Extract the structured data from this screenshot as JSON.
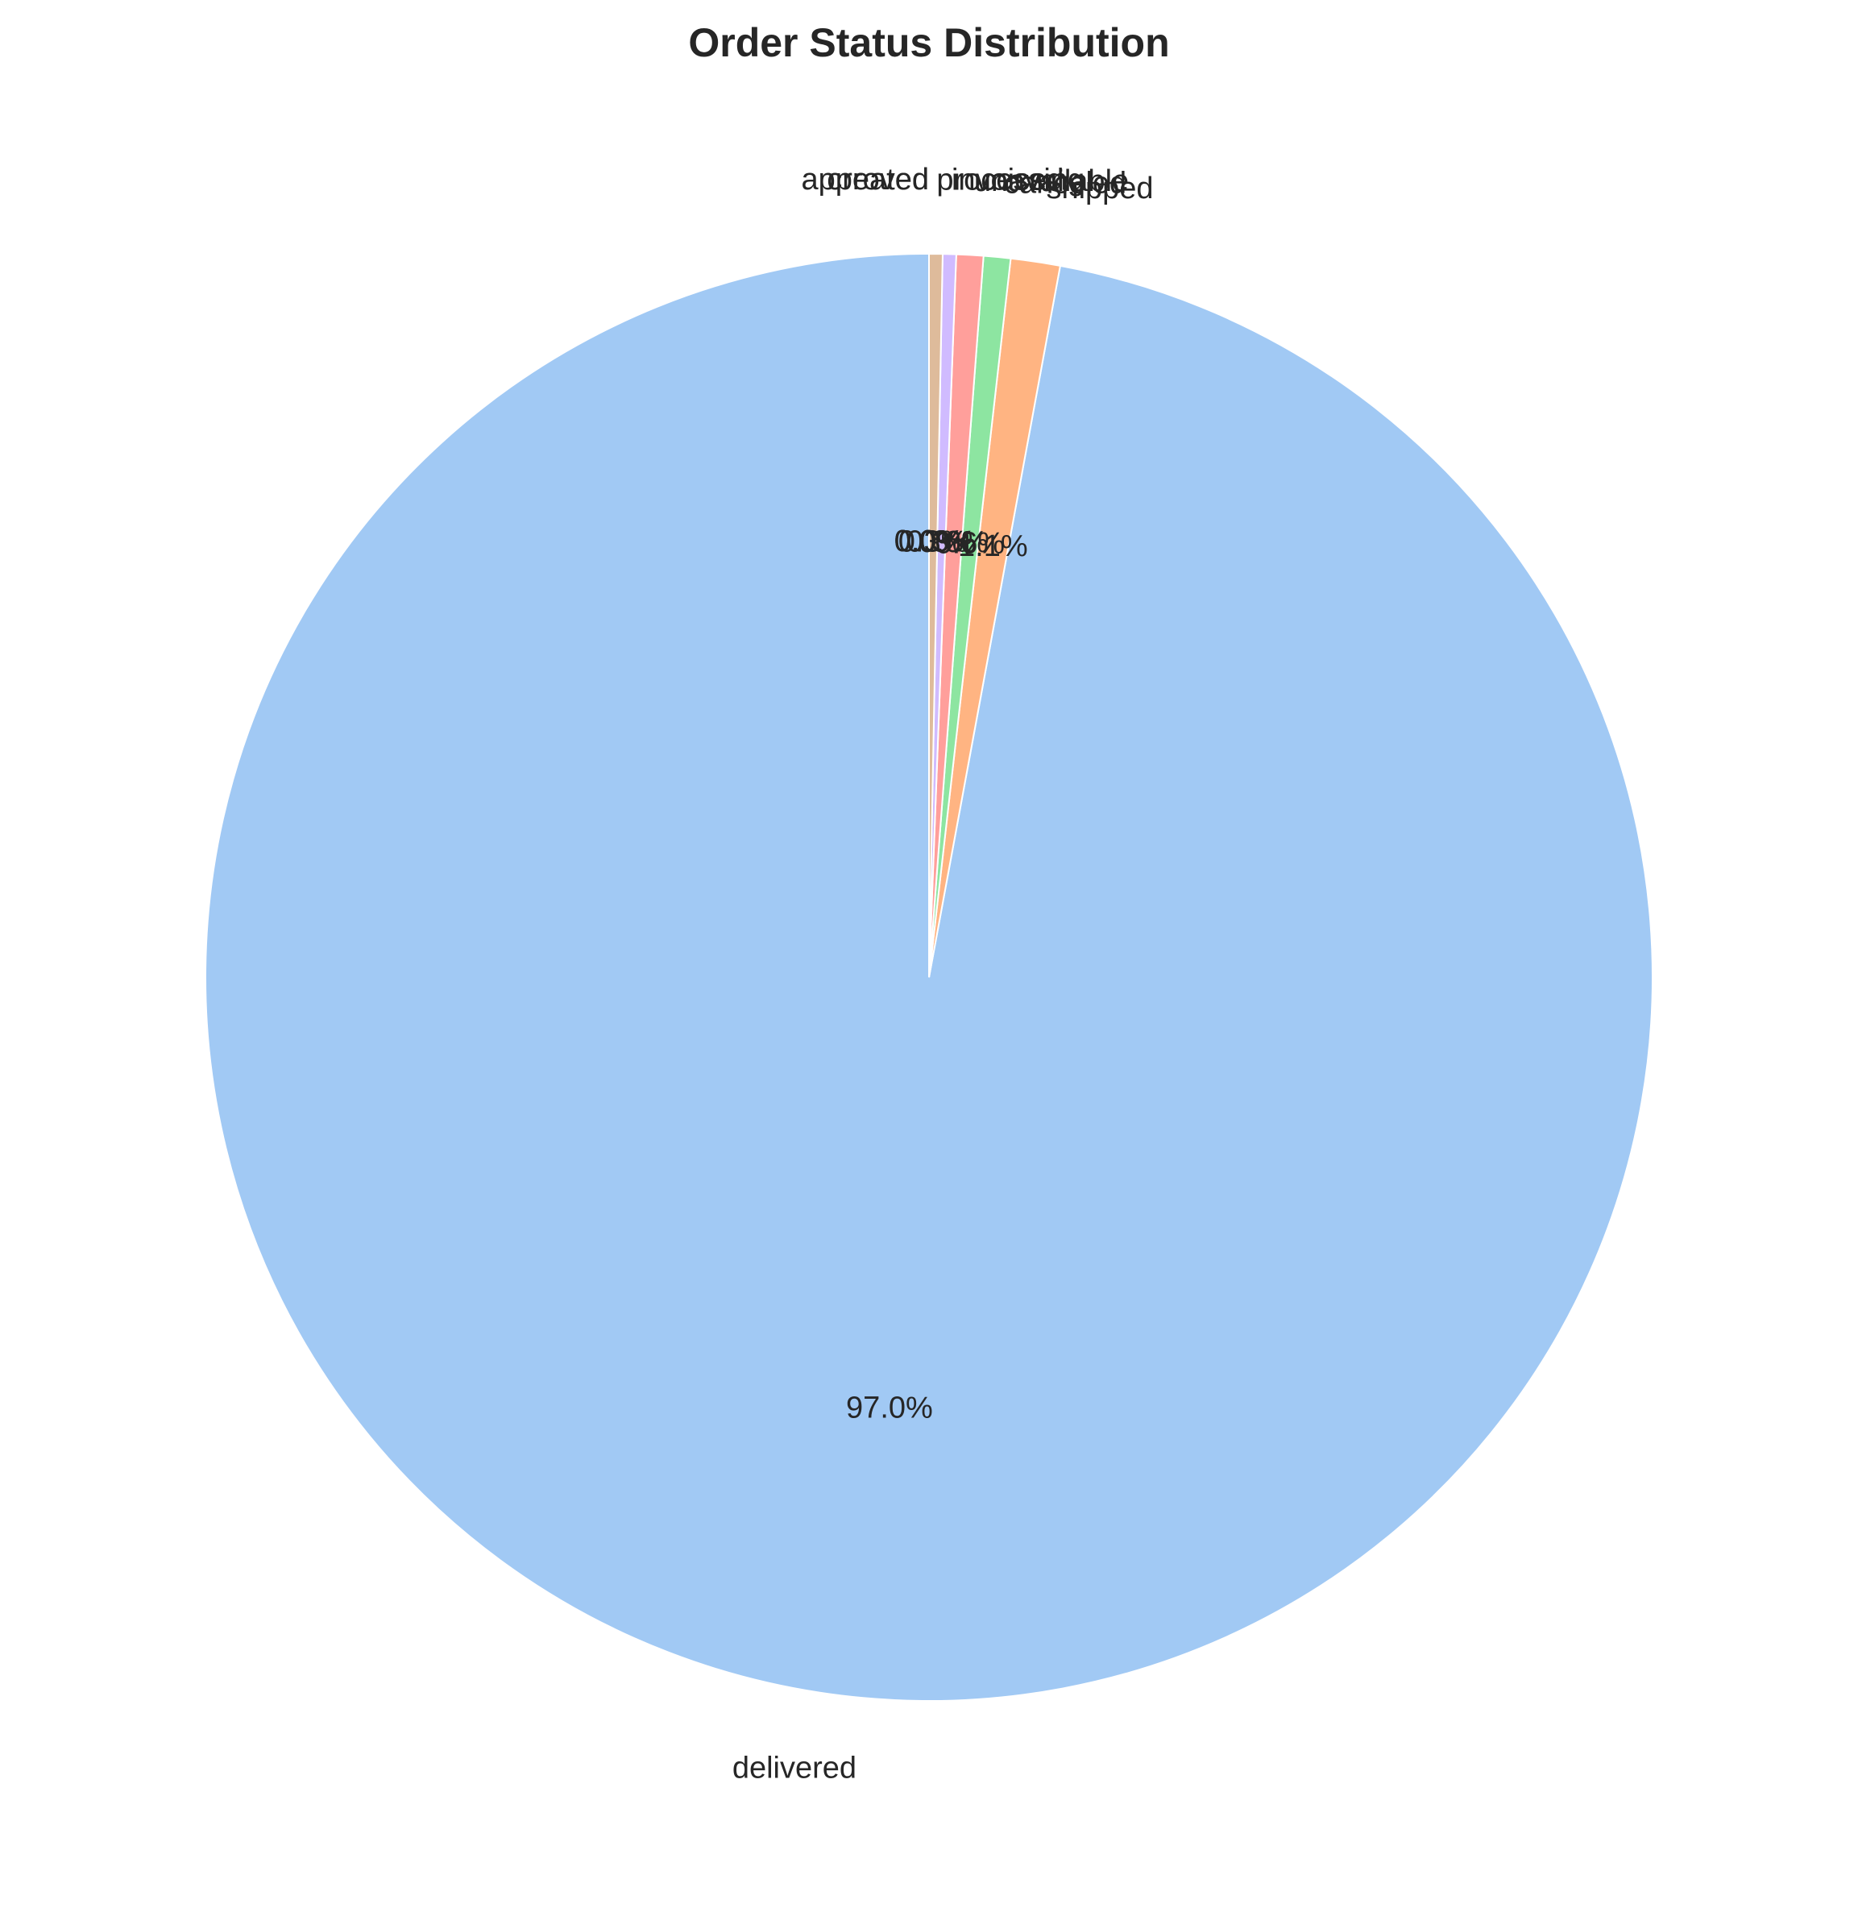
{
  "chart_data": {
    "type": "pie",
    "title": "Order Status Distribution",
    "start_angle_deg": 90,
    "direction": "counterclockwise",
    "slices": [
      {
        "label": "delivered",
        "value": 97.0,
        "pct_label": "97.0%",
        "color": "#a1c9f4"
      },
      {
        "label": "shipped",
        "value": 1.1,
        "pct_label": "1.1%",
        "color": "#ffb482"
      },
      {
        "label": "canceled",
        "value": 0.6,
        "pct_label": "0.6%",
        "color": "#8de5a1"
      },
      {
        "label": "unavailable",
        "value": 0.6,
        "pct_label": "0.6%",
        "color": "#ff9f9b"
      },
      {
        "label": "invoiced",
        "value": 0.3,
        "pct_label": "0.3%",
        "color": "#d0bbff"
      },
      {
        "label": "processing",
        "value": 0.3,
        "pct_label": "0.3%",
        "color": "#debb9b"
      },
      {
        "label": "created",
        "value": 0.0,
        "pct_label": "0.0%",
        "color": "#fab0e4"
      },
      {
        "label": "approved",
        "value": 0.0,
        "pct_label": "0.0%",
        "color": "#cfcfcf"
      }
    ]
  }
}
